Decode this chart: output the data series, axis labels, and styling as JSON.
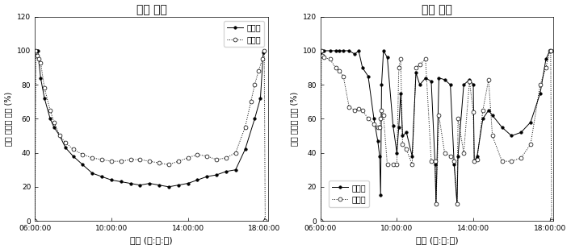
{
  "title_left": "맑은 날씨",
  "title_right": "흐린 날씨",
  "xlabel": "시간 (시:분:초)",
  "ylabel": "산란 일사량 비율 (%)",
  "legend_inland": "내륙지",
  "legend_reclaimed": "간척지",
  "xtick_labels": [
    "06:00:00",
    "10:00:00",
    "14:00:00",
    "18:00:00"
  ],
  "xtick_values": [
    6.0,
    10.0,
    14.0,
    18.0
  ],
  "ylim": [
    0,
    120
  ],
  "ytick_values": [
    0,
    20,
    40,
    60,
    80,
    100,
    120
  ],
  "clear_inland_x": [
    6.0,
    6.1,
    6.15,
    6.3,
    6.5,
    6.8,
    7.0,
    7.3,
    7.6,
    8.0,
    8.5,
    9.0,
    9.5,
    10.0,
    10.5,
    11.0,
    11.5,
    12.0,
    12.5,
    13.0,
    13.5,
    14.0,
    14.5,
    15.0,
    15.5,
    16.0,
    16.5,
    17.0,
    17.5,
    17.8,
    17.95,
    18.0
  ],
  "clear_inland_y": [
    100,
    100,
    100,
    84,
    72,
    60,
    55,
    50,
    43,
    38,
    33,
    28,
    26,
    24,
    23,
    22,
    21,
    22,
    21,
    20,
    21,
    22,
    24,
    26,
    27,
    29,
    30,
    42,
    60,
    72,
    99,
    100
  ],
  "clear_reclaimed_x": [
    6.0,
    6.05,
    6.1,
    6.2,
    6.3,
    6.5,
    6.8,
    7.0,
    7.3,
    7.6,
    8.0,
    8.5,
    9.0,
    9.5,
    10.0,
    10.5,
    11.0,
    11.5,
    12.0,
    12.5,
    13.0,
    13.5,
    14.0,
    14.5,
    15.0,
    15.5,
    16.0,
    16.5,
    17.0,
    17.3,
    17.5,
    17.7,
    17.9,
    18.0,
    18.05
  ],
  "clear_reclaimed_y": [
    0,
    100,
    97,
    95,
    93,
    78,
    65,
    58,
    50,
    46,
    42,
    39,
    37,
    36,
    35,
    35,
    36,
    36,
    35,
    34,
    33,
    35,
    37,
    39,
    38,
    36,
    37,
    40,
    55,
    70,
    80,
    88,
    95,
    100,
    0
  ],
  "cloudy_inland_x": [
    6.0,
    6.1,
    6.2,
    6.5,
    6.8,
    7.0,
    7.2,
    7.5,
    7.8,
    8.0,
    8.2,
    8.5,
    8.8,
    9.0,
    9.1,
    9.15,
    9.2,
    9.3,
    9.5,
    9.8,
    10.0,
    10.1,
    10.2,
    10.3,
    10.5,
    10.8,
    11.0,
    11.2,
    11.5,
    11.8,
    12.0,
    12.05,
    12.2,
    12.5,
    12.8,
    13.0,
    13.15,
    13.2,
    13.5,
    13.8,
    14.0,
    14.05,
    14.2,
    14.5,
    14.8,
    15.0,
    15.5,
    16.0,
    16.5,
    17.0,
    17.5,
    17.8,
    18.0,
    18.1
  ],
  "cloudy_inland_y": [
    99,
    100,
    100,
    100,
    100,
    100,
    100,
    100,
    98,
    100,
    90,
    85,
    60,
    47,
    38,
    15,
    80,
    100,
    96,
    56,
    40,
    55,
    75,
    50,
    52,
    38,
    87,
    80,
    84,
    82,
    33,
    10,
    84,
    83,
    80,
    33,
    10,
    38,
    80,
    83,
    80,
    35,
    38,
    60,
    65,
    62,
    55,
    50,
    52,
    58,
    75,
    95,
    100,
    100
  ],
  "cloudy_reclaimed_x": [
    6.0,
    6.05,
    6.1,
    6.2,
    6.5,
    6.8,
    7.0,
    7.2,
    7.5,
    7.8,
    8.0,
    8.2,
    8.5,
    8.8,
    9.0,
    9.1,
    9.15,
    9.2,
    9.3,
    9.5,
    9.8,
    10.0,
    10.1,
    10.2,
    10.3,
    10.5,
    10.8,
    11.0,
    11.2,
    11.5,
    11.8,
    12.0,
    12.05,
    12.2,
    12.5,
    12.8,
    13.0,
    13.15,
    13.2,
    13.5,
    13.8,
    14.0,
    14.05,
    14.2,
    14.5,
    14.8,
    15.0,
    15.5,
    16.0,
    16.5,
    17.0,
    17.5,
    17.8,
    18.0,
    18.05,
    18.1
  ],
  "cloudy_reclaimed_y": [
    0,
    100,
    97,
    96,
    95,
    90,
    88,
    85,
    67,
    65,
    66,
    65,
    60,
    57,
    55,
    55,
    60,
    65,
    62,
    33,
    33,
    33,
    90,
    95,
    45,
    42,
    33,
    90,
    92,
    95,
    35,
    35,
    10,
    62,
    40,
    38,
    35,
    10,
    60,
    40,
    82,
    64,
    35,
    36,
    65,
    83,
    50,
    35,
    35,
    37,
    45,
    80,
    90,
    100,
    100,
    0
  ]
}
